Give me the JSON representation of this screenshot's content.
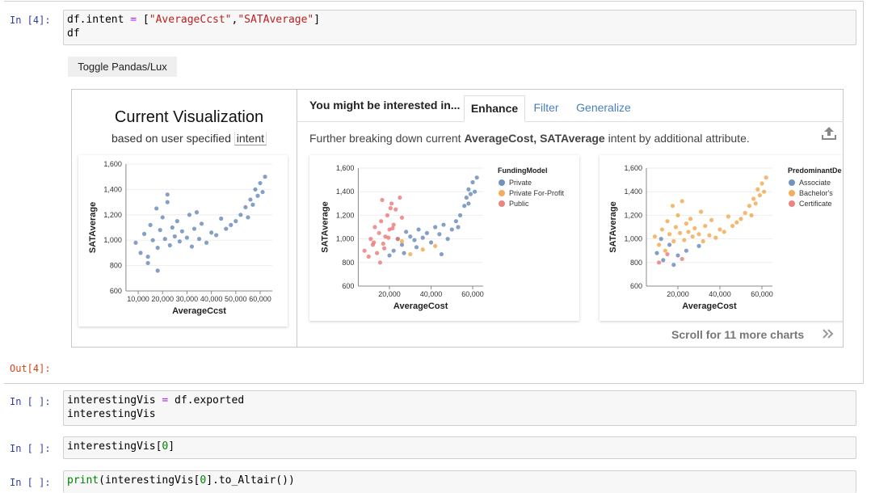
{
  "cells": [
    {
      "prompt": "In [4]:",
      "code": [
        [
          {
            "text": "df.intent ",
            "color": "#000000"
          },
          {
            "text": "=",
            "color": "#aa22ff"
          },
          {
            "text": " [",
            "color": "#000000"
          },
          {
            "text": "\"AverageCcst\"",
            "color": "#ba2121"
          },
          {
            "text": ",",
            "color": "#000000"
          },
          {
            "text": "\"SATAverage\"",
            "color": "#ba2121"
          },
          {
            "text": "]",
            "color": "#000000"
          }
        ],
        [
          {
            "text": "df",
            "color": "#000000"
          }
        ]
      ]
    },
    {
      "prompt": "In [ ]:",
      "code": [
        [
          {
            "text": "interestingVis ",
            "color": "#000000"
          },
          {
            "text": "=",
            "color": "#aa22ff"
          },
          {
            "text": " df.exported",
            "color": "#000000"
          }
        ],
        [
          {
            "text": "interestingVis",
            "color": "#000000"
          }
        ]
      ]
    },
    {
      "prompt": "In [ ]:",
      "code": [
        [
          {
            "text": "interestingVis[",
            "color": "#000000"
          },
          {
            "text": "0",
            "color": "#008000"
          },
          {
            "text": "]",
            "color": "#000000"
          }
        ]
      ]
    },
    {
      "prompt": "In [ ]:",
      "code": [
        [
          {
            "text": "print",
            "color": "#008000"
          },
          {
            "text": "(interestingVis[",
            "color": "#000000"
          },
          {
            "text": "0",
            "color": "#008000"
          },
          {
            "text": "].to_Altair())",
            "color": "#000000"
          }
        ]
      ]
    }
  ],
  "output": {
    "prompt": "Out[4]:",
    "toggle": "Toggle Pandas/Lux",
    "current": {
      "title": "Current Visualization",
      "subtitle": "based on user specified",
      "intent": "intent",
      "chart": {
        "type": "scatter",
        "x_label": "AverageCcst",
        "y_label": "SATAverage",
        "xlim": [
          5000,
          65000
        ],
        "ylim": [
          600,
          1600
        ],
        "xticks": [
          {
            "value": 10000,
            "label": "10,000"
          },
          {
            "value": 20000,
            "label": "20,000"
          },
          {
            "value": 30000,
            "label": "30,000"
          },
          {
            "value": 40000,
            "label": "40,000"
          },
          {
            "value": 50000,
            "label": "50,000"
          },
          {
            "value": 60000,
            "label": "60,000"
          }
        ],
        "yticks": [
          600,
          800,
          {
            "value": 1000,
            "label": "1,000"
          },
          {
            "value": 1200,
            "label": "1,200"
          },
          {
            "value": 1400,
            "label": "1,400"
          },
          {
            "value": 1600,
            "label": "1,600"
          }
        ],
        "series": [
          {
            "color": "#5b80b2",
            "x": [
              9000,
              11000,
              12500,
              14000,
              15000,
              16000,
              17500,
              18000,
              19000,
              20000,
              21000,
              22000,
              23000,
              24000,
              25000,
              26000,
              27000,
              28000,
              30000,
              31000,
              32000,
              33000,
              35000,
              36000,
              38000,
              40000,
              42000,
              44000,
              46000,
              48000,
              50000,
              52000,
              54000,
              55000,
              56000,
              57000,
              58000,
              59000,
              60000,
              61000,
              62000,
              18000,
              22000,
              14000,
              34000
            ],
            "values": [
              980,
              900,
              1050,
              870,
              1120,
              1000,
              1250,
              940,
              1080,
              1180,
              1010,
              1300,
              960,
              1100,
              1030,
              1150,
              990,
              1070,
              1020,
              1200,
              950,
              1090,
              1010,
              1130,
              980,
              1060,
              1040,
              1170,
              1090,
              1120,
              1150,
              1200,
              1260,
              1180,
              1320,
              1280,
              1400,
              1350,
              1450,
              1380,
              1500,
              760,
              1360,
              820,
              1220
            ]
          }
        ]
      }
    },
    "recommendations": {
      "heading": "You might be interested in...",
      "tabs": [
        "Enhance",
        "Filter",
        "Generalize"
      ],
      "active_tab": 0,
      "description": [
        "Further breaking down current ",
        "AverageCost, SATAverage",
        " intent by additional attribute."
      ],
      "charts": [
        {
          "type": "scatter",
          "x_label": "AverageCost",
          "y_label": "SATAverage",
          "legend_title": "FundingModel",
          "xlim": [
            5000,
            65000
          ],
          "ylim": [
            600,
            1600
          ],
          "xticks": [
            {
              "value": 20000,
              "label": "20,000"
            },
            {
              "value": 40000,
              "label": "40,000"
            },
            {
              "value": 60000,
              "label": "60,000"
            }
          ],
          "yticks": [
            600,
            800,
            {
              "value": 1000,
              "label": "1,000"
            },
            {
              "value": 1200,
              "label": "1,200"
            },
            {
              "value": 1400,
              "label": "1,400"
            },
            {
              "value": 1600,
              "label": "1,600"
            }
          ],
          "series": [
            {
              "name": "Private",
              "color": "#5b80b2",
              "x": [
                24000,
                26000,
                28000,
                30000,
                32000,
                34000,
                36000,
                38000,
                40000,
                42000,
                44000,
                46000,
                48000,
                50000,
                52000,
                54000,
                56000,
                57000,
                58000,
                59000,
                60000,
                61000,
                62000,
                27000,
                33000,
                45000,
                53000,
                20000,
                22000,
                58000
              ],
              "values": [
                1000,
                950,
                1060,
                1020,
                990,
                1080,
                1010,
                1050,
                970,
                1100,
                1040,
                1120,
                1000,
                1080,
                1150,
                1200,
                1280,
                1350,
                1420,
                1380,
                1480,
                1400,
                1520,
                880,
                930,
                870,
                1100,
                860,
                900,
                1300
              ]
            },
            {
              "name": "Private For-Profit",
              "color": "#f0a040",
              "x": [
                30000,
                36000,
                26000,
                42000
              ],
              "values": [
                870,
                910,
                980,
                940
              ]
            },
            {
              "name": "Public",
              "color": "#e8706e",
              "x": [
                8000,
                10000,
                11000,
                12000,
                13000,
                14000,
                15000,
                16000,
                17000,
                18000,
                19000,
                20000,
                21000,
                22000,
                23000,
                24000,
                25000,
                26000,
                15500,
                17500,
                19500,
                20500,
                21500,
                16500,
                12500
              ],
              "values": [
                900,
                850,
                1000,
                950,
                1100,
                880,
                1050,
                1150,
                960,
                1020,
                1200,
                1080,
                1300,
                1120,
                1250,
                1000,
                1350,
                1180,
                800,
                920,
                1010,
                1260,
                1090,
                1330,
                970
              ]
            }
          ]
        },
        {
          "type": "scatter",
          "x_label": "AverageCost",
          "y_label": "SATAverage",
          "legend_title": "PredominantDe",
          "xlim": [
            5000,
            65000
          ],
          "ylim": [
            600,
            1600
          ],
          "xticks": [
            {
              "value": 20000,
              "label": "20,000"
            },
            {
              "value": 40000,
              "label": "40,000"
            },
            {
              "value": 60000,
              "label": "60,000"
            }
          ],
          "yticks": [
            600,
            800,
            {
              "value": 1000,
              "label": "1,000"
            },
            {
              "value": 1200,
              "label": "1,200"
            },
            {
              "value": 1400,
              "label": "1,400"
            },
            {
              "value": 1600,
              "label": "1,600"
            }
          ],
          "series": [
            {
              "name": "Associate",
              "color": "#5b80b2",
              "x": [
                10000,
                13000,
                16000,
                20000,
                24000,
                12000,
                18000,
                30000
              ],
              "values": [
                880,
                820,
                950,
                860,
                900,
                1000,
                780,
                940
              ]
            },
            {
              "name": "Bachelor's",
              "color": "#f0a040",
              "x": [
                9000,
                11000,
                12500,
                14000,
                15000,
                16000,
                17500,
                18000,
                19000,
                20000,
                21000,
                22000,
                23000,
                24000,
                25000,
                26000,
                27000,
                28000,
                30000,
                31000,
                32000,
                33000,
                35000,
                36000,
                38000,
                40000,
                42000,
                44000,
                46000,
                48000,
                50000,
                52000,
                54000,
                55000,
                56000,
                57000,
                58000,
                59000,
                60000,
                61000,
                62000
              ],
              "values": [
                1020,
                950,
                1080,
                900,
                1150,
                1040,
                1280,
                980,
                1100,
                1200,
                1050,
                1320,
                990,
                1130,
                1060,
                1170,
                1020,
                1090,
                1040,
                1230,
                980,
                1110,
                1030,
                1160,
                1010,
                1080,
                1060,
                1190,
                1110,
                1140,
                1170,
                1220,
                1280,
                1200,
                1340,
                1300,
                1420,
                1370,
                1470,
                1400,
                1520
              ]
            },
            {
              "name": "Certificate",
              "color": "#e8706e",
              "x": [
                11000,
                15000,
                22000
              ],
              "values": [
                800,
                870,
                830
              ]
            }
          ]
        }
      ],
      "scroll": "Scroll for 11 more charts"
    }
  }
}
